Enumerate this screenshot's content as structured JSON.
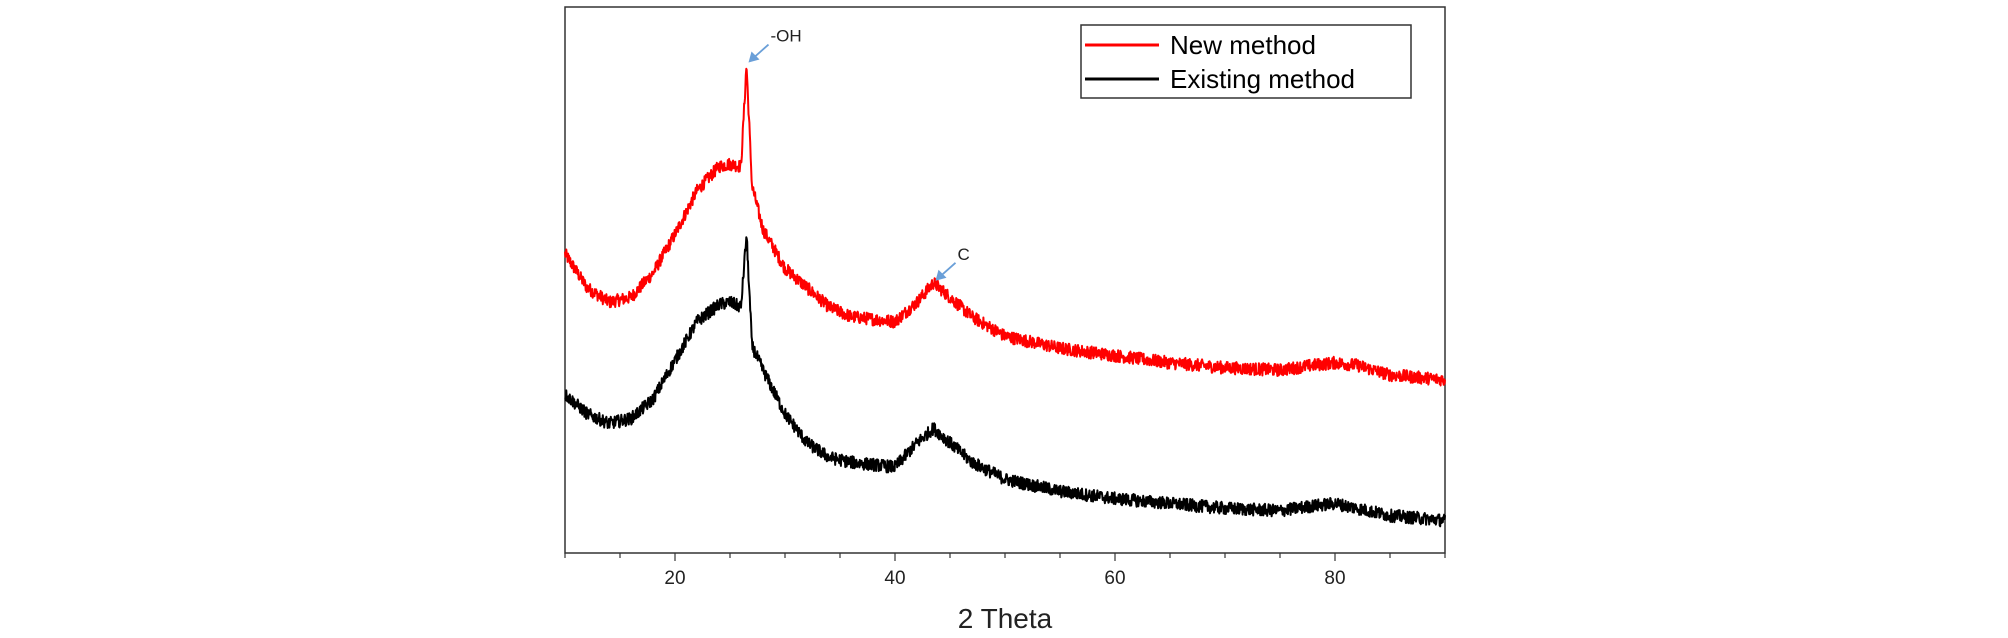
{
  "chart_data": {
    "type": "line",
    "title": "",
    "xlabel": "2 Theta",
    "ylabel": "",
    "xlim": [
      10,
      90
    ],
    "ylim": [
      0,
      100
    ],
    "xticks": [
      20,
      40,
      60,
      80
    ],
    "y_ticks_shown": false,
    "legend_position": "top-right",
    "series": [
      {
        "name": "New method",
        "color": "#ff0000",
        "x": [
          10,
          12,
          14,
          16,
          18,
          20,
          22,
          24,
          25,
          26,
          26.5,
          27,
          28,
          30,
          32,
          34,
          36,
          38,
          40,
          42,
          43.5,
          45,
          47,
          50,
          55,
          60,
          65,
          70,
          75,
          78,
          80,
          82,
          85,
          90
        ],
        "y": [
          58,
          51,
          48,
          49,
          54,
          62,
          71,
          76,
          76.5,
          76,
          97,
          72,
          63,
          55,
          51,
          47,
          45,
          44.5,
          44,
          48,
          52,
          49,
          45,
          41,
          38.5,
          37,
          35.5,
          34.5,
          34,
          35,
          35.5,
          35,
          33,
          32
        ]
      },
      {
        "name": "Existing method",
        "color": "#000000",
        "x": [
          10,
          12,
          14,
          16,
          18,
          20,
          22,
          24,
          25,
          26,
          26.5,
          27,
          28,
          30,
          32,
          34,
          36,
          38,
          40,
          42,
          43.5,
          45,
          47,
          50,
          55,
          60,
          65,
          70,
          75,
          78,
          80,
          82,
          85,
          90
        ],
        "y": [
          29,
          25,
          23,
          24,
          28,
          36,
          44,
          47.5,
          48,
          47,
          62,
          39,
          34,
          25,
          19,
          16,
          15,
          14.5,
          14,
          19,
          22,
          19,
          15,
          11.5,
          9,
          7.5,
          6.5,
          5.5,
          5,
          6,
          6.5,
          5.5,
          4,
          3
        ]
      }
    ],
    "annotations": [
      {
        "text": "-OH",
        "x": 26.5,
        "y": 97
      },
      {
        "text": "C",
        "x": 43.5,
        "y": 52
      }
    ]
  },
  "legend": {
    "items": [
      "New method",
      "Existing method"
    ]
  },
  "colors": {
    "arrow": "#6a9fd8",
    "axis": "#333333"
  }
}
